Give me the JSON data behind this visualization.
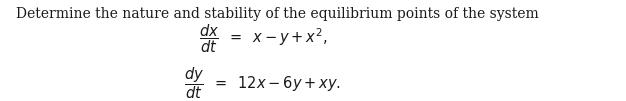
{
  "title": "Determine the nature and stability of the equilibrium points of the system",
  "title_fontsize": 10.0,
  "title_color": "#1a1a1a",
  "eq1": "$\\dfrac{dx}{dt} \\;\\;=\\;\\; x - y + x^2,$",
  "eq2": "$\\dfrac{dy}{dt} \\;\\;=\\;\\; 12x - 6y + xy.$",
  "math_fontsize": 10.5,
  "bg_color": "#ffffff",
  "text_color": "#1a1a1a",
  "figsize": [
    6.26,
    1.01
  ],
  "dpi": 100
}
